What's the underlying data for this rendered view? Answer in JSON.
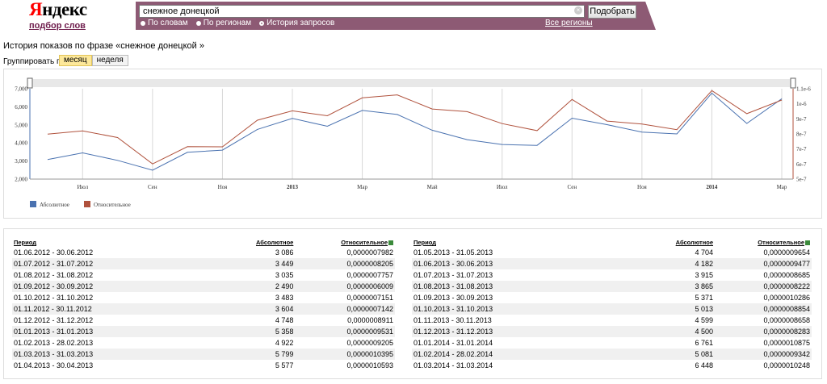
{
  "logo": {
    "first_letter": "Я",
    "rest": "ндекс",
    "subtitle": "подбор слов"
  },
  "search": {
    "value": "снежное донецкой",
    "clear_glyph": "×",
    "button_label": "Подобрать",
    "radios": [
      {
        "label": "По словам",
        "selected": false
      },
      {
        "label": "По регионам",
        "selected": false
      },
      {
        "label": "История запросов",
        "selected": true
      }
    ],
    "regions_link": "Все регионы"
  },
  "history": {
    "title": "История показов по фразе «снежное донецкой »",
    "group_label": "Группировать по:",
    "group_options": [
      "месяц",
      "неделя"
    ],
    "group_active": "месяц"
  },
  "chart_data": {
    "type": "line",
    "x": [
      "2012-06",
      "2012-07",
      "2012-08",
      "2012-09",
      "2012-10",
      "2012-11",
      "2012-12",
      "2013-01",
      "2013-02",
      "2013-03",
      "2013-04",
      "2013-05",
      "2013-06",
      "2013-07",
      "2013-08",
      "2013-09",
      "2013-10",
      "2013-11",
      "2013-12",
      "2014-01",
      "2014-02",
      "2014-03"
    ],
    "x_tick_labels": [
      {
        "x": "2012-07",
        "label": "Июл",
        "bold": false
      },
      {
        "x": "2012-09",
        "label": "Сен",
        "bold": false
      },
      {
        "x": "2012-11",
        "label": "Ноя",
        "bold": false
      },
      {
        "x": "2013-01",
        "label": "2013",
        "bold": true
      },
      {
        "x": "2013-03",
        "label": "Мар",
        "bold": false
      },
      {
        "x": "2013-05",
        "label": "Май",
        "bold": false
      },
      {
        "x": "2013-07",
        "label": "Июл",
        "bold": false
      },
      {
        "x": "2013-09",
        "label": "Сен",
        "bold": false
      },
      {
        "x": "2013-11",
        "label": "Ноя",
        "bold": false
      },
      {
        "x": "2014-01",
        "label": "2014",
        "bold": true
      },
      {
        "x": "2014-03",
        "label": "Мар",
        "bold": false
      }
    ],
    "y_left": {
      "ticks": [
        "7,000",
        "6,000",
        "5,000",
        "4,000",
        "3,000",
        "2,000"
      ],
      "range": [
        2000,
        7000
      ]
    },
    "y_right": {
      "ticks": [
        "1.1e-6",
        "1e-6",
        "9e-7",
        "8e-7",
        "7e-7",
        "6e-7",
        "5e-7"
      ],
      "range": [
        5e-07,
        1.1e-06
      ]
    },
    "series": [
      {
        "name": "Абсолютное",
        "color": "#4a72b0",
        "axis": "left",
        "values": [
          3086,
          3449,
          3035,
          2490,
          3483,
          3604,
          4748,
          5358,
          4922,
          5799,
          5577,
          4704,
          4182,
          3915,
          3865,
          5371,
          5013,
          4599,
          4500,
          6761,
          5081,
          6448
        ]
      },
      {
        "name": "Относительное",
        "color": "#b0523d",
        "axis": "right",
        "values": [
          7.982e-07,
          8.205e-07,
          7.757e-07,
          6.009e-07,
          7.151e-07,
          7.142e-07,
          8.911e-07,
          9.531e-07,
          9.205e-07,
          1.0395e-06,
          1.0593e-06,
          9.654e-07,
          9.477e-07,
          8.685e-07,
          8.222e-07,
          1.0286e-06,
          8.854e-07,
          8.658e-07,
          8.283e-07,
          1.0875e-06,
          9.342e-07,
          1.0248e-06
        ]
      }
    ]
  },
  "table": {
    "headers": {
      "period": "Период",
      "absolute": "Абсолютное",
      "relative": "Относительное"
    },
    "left_rows": [
      [
        "01.06.2012 - 30.06.2012",
        "3 086",
        "0,0000007982"
      ],
      [
        "01.07.2012 - 31.07.2012",
        "3 449",
        "0,0000008205"
      ],
      [
        "01.08.2012 - 31.08.2012",
        "3 035",
        "0,0000007757"
      ],
      [
        "01.09.2012 - 30.09.2012",
        "2 490",
        "0,0000006009"
      ],
      [
        "01.10.2012 - 31.10.2012",
        "3 483",
        "0,0000007151"
      ],
      [
        "01.11.2012 - 30.11.2012",
        "3 604",
        "0,0000007142"
      ],
      [
        "01.12.2012 - 31.12.2012",
        "4 748",
        "0,0000008911"
      ],
      [
        "01.01.2013 - 31.01.2013",
        "5 358",
        "0,0000009531"
      ],
      [
        "01.02.2013 - 28.02.2013",
        "4 922",
        "0,0000009205"
      ],
      [
        "01.03.2013 - 31.03.2013",
        "5 799",
        "0,0000010395"
      ],
      [
        "01.04.2013 - 30.04.2013",
        "5 577",
        "0,0000010593"
      ]
    ],
    "right_rows": [
      [
        "01.05.2013 - 31.05.2013",
        "4 704",
        "0,0000009654"
      ],
      [
        "01.06.2013 - 30.06.2013",
        "4 182",
        "0,0000009477"
      ],
      [
        "01.07.2013 - 31.07.2013",
        "3 915",
        "0,0000008685"
      ],
      [
        "01.08.2013 - 31.08.2013",
        "3 865",
        "0,0000008222"
      ],
      [
        "01.09.2013 - 30.09.2013",
        "5 371",
        "0,0000010286"
      ],
      [
        "01.10.2013 - 31.10.2013",
        "5 013",
        "0,0000008854"
      ],
      [
        "01.11.2013 - 30.11.2013",
        "4 599",
        "0,0000008658"
      ],
      [
        "01.12.2013 - 31.12.2013",
        "4 500",
        "0,0000008283"
      ],
      [
        "01.01.2014 - 31.01.2014",
        "6 761",
        "0,0000010875"
      ],
      [
        "01.02.2014 - 28.02.2014",
        "5 081",
        "0,0000009342"
      ],
      [
        "01.03.2014 - 31.03.2014",
        "6 448",
        "0,0000010248"
      ]
    ]
  }
}
